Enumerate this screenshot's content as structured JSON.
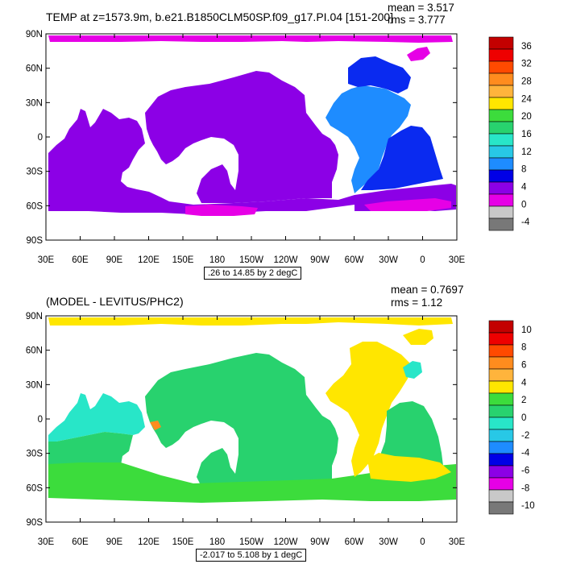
{
  "panels": [
    {
      "title": "TEMP at z=1573.9m, b.e21.B1850CLM50SP.f09_g17.PI.04 [151-200]",
      "mean": "mean = 3.517",
      "rms": "rms = 3.777",
      "range_label": ".26 to 14.85 by 2 degC",
      "colorbar_labels": [
        "36",
        "32",
        "28",
        "24",
        "20",
        "16",
        "12",
        "8",
        "4",
        "0",
        "-4"
      ]
    },
    {
      "title": "(MODEL - LEVITUS/PHC2)",
      "mean": "mean = 0.7697",
      "rms": "rms = 1.12",
      "range_label": "-2.017 to 5.108 by 1 degC",
      "colorbar_labels": [
        "10",
        "8",
        "6",
        "4",
        "2",
        "0",
        "-2",
        "-4",
        "-6",
        "-8",
        "-10"
      ]
    }
  ],
  "lat_labels": [
    "90N",
    "60N",
    "30N",
    "0",
    "30S",
    "60S",
    "90S"
  ],
  "lon_labels": [
    "30E",
    "60E",
    "90E",
    "120E",
    "150E",
    "180",
    "150W",
    "120W",
    "90W",
    "60W",
    "30W",
    "0",
    "30E"
  ],
  "colorbar_colors": [
    "#c30000",
    "#ee0000",
    "#ff4a00",
    "#ff8c1e",
    "#ffb43c",
    "#ffe600",
    "#3cdc3c",
    "#28d26e",
    "#28e6c8",
    "#28c8e6",
    "#1e8cff",
    "#0000e6",
    "#8c00e6",
    "#e600e6",
    "#c8c8c8",
    "#787878"
  ],
  "colors": {
    "purple": "#8c00e6",
    "magenta": "#e600e6",
    "blue": "#0a2af0",
    "lightblue": "#1e8cff",
    "cyan": "#28e6c8",
    "green": "#28d26e",
    "lightgreen": "#3cdc3c",
    "yellow": "#ffe600",
    "orange": "#ff8c1e"
  }
}
